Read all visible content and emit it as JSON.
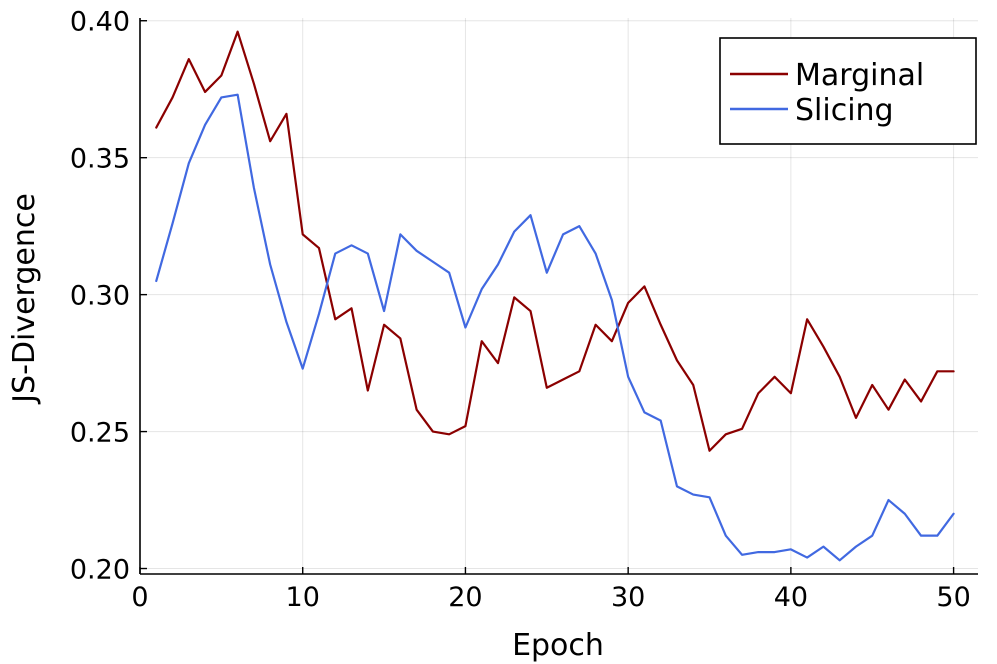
{
  "chart_data": {
    "type": "line",
    "title": "",
    "xlabel": "Epoch",
    "ylabel": "JS-Divergence",
    "xlim": [
      0,
      51.5
    ],
    "ylim": [
      0.198,
      0.401
    ],
    "xticks": [
      0,
      10,
      20,
      30,
      40,
      50
    ],
    "xtick_labels": [
      "0",
      "10",
      "20",
      "30",
      "40",
      "50"
    ],
    "yticks": [
      0.2,
      0.25,
      0.3,
      0.35,
      0.4
    ],
    "ytick_labels": [
      "0.20",
      "0.25",
      "0.30",
      "0.35",
      "0.40"
    ],
    "grid": true,
    "legend_position": "top-right",
    "x": [
      1,
      2,
      3,
      4,
      5,
      6,
      7,
      8,
      9,
      10,
      11,
      12,
      13,
      14,
      15,
      16,
      17,
      18,
      19,
      20,
      21,
      22,
      23,
      24,
      25,
      26,
      27,
      28,
      29,
      30,
      31,
      32,
      33,
      34,
      35,
      36,
      37,
      38,
      39,
      40,
      41,
      42,
      43,
      44,
      45,
      46,
      47,
      48,
      49,
      50
    ],
    "series": [
      {
        "name": "Marginal",
        "color": "#8b0000",
        "values": [
          0.361,
          0.372,
          0.386,
          0.374,
          0.38,
          0.396,
          0.377,
          0.356,
          0.366,
          0.322,
          0.317,
          0.291,
          0.295,
          0.265,
          0.289,
          0.284,
          0.258,
          0.25,
          0.249,
          0.252,
          0.283,
          0.275,
          0.299,
          0.294,
          0.266,
          0.269,
          0.272,
          0.289,
          0.283,
          0.297,
          0.303,
          0.289,
          0.276,
          0.267,
          0.243,
          0.249,
          0.251,
          0.264,
          0.27,
          0.264,
          0.291,
          0.281,
          0.27,
          0.255,
          0.267,
          0.258,
          0.269,
          0.261,
          0.272,
          0.272
        ]
      },
      {
        "name": "Slicing",
        "color": "#4169e1",
        "values": [
          0.305,
          0.326,
          0.348,
          0.362,
          0.372,
          0.373,
          0.339,
          0.311,
          0.29,
          0.273,
          0.293,
          0.315,
          0.318,
          0.315,
          0.294,
          0.322,
          0.316,
          0.312,
          0.308,
          0.288,
          0.302,
          0.311,
          0.323,
          0.329,
          0.308,
          0.322,
          0.325,
          0.315,
          0.298,
          0.27,
          0.257,
          0.254,
          0.23,
          0.227,
          0.226,
          0.212,
          0.205,
          0.206,
          0.206,
          0.207,
          0.204,
          0.208,
          0.203,
          0.208,
          0.212,
          0.225,
          0.22,
          0.212,
          0.212,
          0.22
        ]
      }
    ]
  }
}
